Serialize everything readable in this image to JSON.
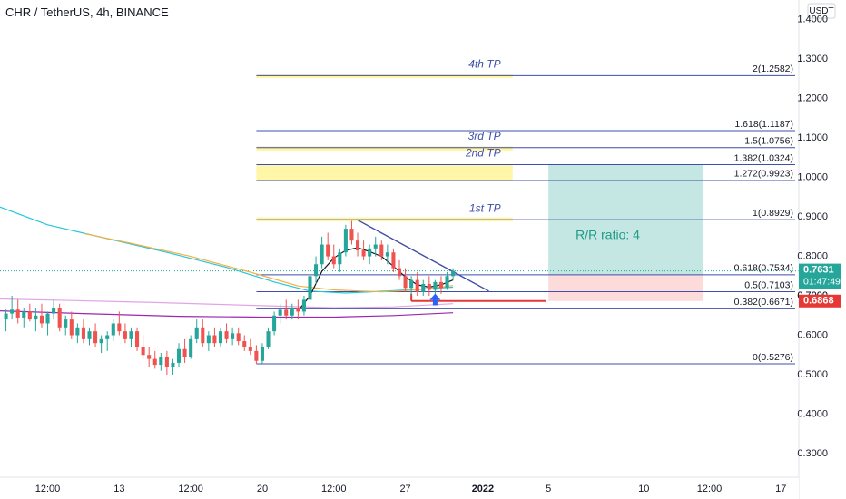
{
  "header": {
    "title": "CHR / TetherUS, 4h, BINANCE",
    "currency": "USDT"
  },
  "colors": {
    "up": "#26a69a",
    "down": "#ef5350",
    "fib": "#3f4fa8",
    "tp_zone": "#fff59d",
    "profit_zone": "#b2dfdb",
    "loss_zone": "#fdd5d5",
    "stop_line": "#e53935",
    "ma_cyan": "#26c6da",
    "ma_orange": "#f5b041",
    "ma_purple": "#9c27b0",
    "ma_pink": "#e1a5e6",
    "ma_black": "#131722",
    "trend": "#3f4fa8",
    "arrow": "#2962ff"
  },
  "chart_data": {
    "type": "candlestick",
    "symbol": "CHR / TetherUS, 4h, BINANCE",
    "currency": "USDT",
    "y_axis": {
      "range": [
        0.24,
        1.45
      ],
      "ticks": [
        0.3,
        0.4,
        0.5,
        0.6,
        0.7,
        0.8,
        0.9,
        1.0,
        1.1,
        1.2,
        1.3,
        1.4
      ],
      "tick_labels": [
        "0.3000",
        "0.4000",
        "0.5000",
        "0.6000",
        "0.7000",
        "0.8000",
        "0.9000",
        "1.0000",
        "1.1000",
        "1.2000",
        "1.3000",
        "1.4000"
      ]
    },
    "x_axis": {
      "tick_labels": [
        "12:00",
        "13",
        "12:00",
        "20",
        "12:00",
        "27",
        "2022",
        "5",
        "10",
        "12:00",
        "17"
      ],
      "tick_positions": [
        3,
        9,
        15,
        21,
        27,
        33,
        39.5,
        45,
        53,
        58.5,
        64.5
      ],
      "range": [
        -1,
        66
      ]
    },
    "candles": [
      {
        "t": -0.5,
        "o": 0.64,
        "h": 0.665,
        "l": 0.61,
        "c": 0.655
      },
      {
        "t": 0,
        "o": 0.655,
        "h": 0.7,
        "l": 0.64,
        "c": 0.665
      },
      {
        "t": 0.5,
        "o": 0.665,
        "h": 0.69,
        "l": 0.63,
        "c": 0.645
      },
      {
        "t": 1,
        "o": 0.645,
        "h": 0.67,
        "l": 0.62,
        "c": 0.66
      },
      {
        "t": 1.5,
        "o": 0.66,
        "h": 0.68,
        "l": 0.635,
        "c": 0.64
      },
      {
        "t": 2,
        "o": 0.64,
        "h": 0.67,
        "l": 0.61,
        "c": 0.65
      },
      {
        "t": 2.5,
        "o": 0.65,
        "h": 0.68,
        "l": 0.62,
        "c": 0.63
      },
      {
        "t": 3,
        "o": 0.63,
        "h": 0.66,
        "l": 0.6,
        "c": 0.655
      },
      {
        "t": 3.5,
        "o": 0.655,
        "h": 0.69,
        "l": 0.64,
        "c": 0.67
      },
      {
        "t": 4,
        "o": 0.67,
        "h": 0.68,
        "l": 0.61,
        "c": 0.62
      },
      {
        "t": 4.5,
        "o": 0.62,
        "h": 0.65,
        "l": 0.6,
        "c": 0.64
      },
      {
        "t": 5,
        "o": 0.64,
        "h": 0.66,
        "l": 0.59,
        "c": 0.6
      },
      {
        "t": 5.5,
        "o": 0.6,
        "h": 0.63,
        "l": 0.58,
        "c": 0.62
      },
      {
        "t": 6,
        "o": 0.62,
        "h": 0.64,
        "l": 0.58,
        "c": 0.59
      },
      {
        "t": 6.5,
        "o": 0.59,
        "h": 0.62,
        "l": 0.575,
        "c": 0.61
      },
      {
        "t": 7,
        "o": 0.61,
        "h": 0.63,
        "l": 0.57,
        "c": 0.58
      },
      {
        "t": 7.5,
        "o": 0.58,
        "h": 0.6,
        "l": 0.555,
        "c": 0.59
      },
      {
        "t": 8,
        "o": 0.59,
        "h": 0.61,
        "l": 0.56,
        "c": 0.6
      },
      {
        "t": 8.5,
        "o": 0.6,
        "h": 0.64,
        "l": 0.585,
        "c": 0.63
      },
      {
        "t": 9,
        "o": 0.63,
        "h": 0.66,
        "l": 0.6,
        "c": 0.61
      },
      {
        "t": 9.5,
        "o": 0.61,
        "h": 0.63,
        "l": 0.58,
        "c": 0.59
      },
      {
        "t": 10,
        "o": 0.59,
        "h": 0.62,
        "l": 0.57,
        "c": 0.61
      },
      {
        "t": 10.5,
        "o": 0.61,
        "h": 0.62,
        "l": 0.56,
        "c": 0.57
      },
      {
        "t": 11,
        "o": 0.57,
        "h": 0.6,
        "l": 0.54,
        "c": 0.55
      },
      {
        "t": 11.5,
        "o": 0.55,
        "h": 0.57,
        "l": 0.52,
        "c": 0.54
      },
      {
        "t": 12,
        "o": 0.54,
        "h": 0.56,
        "l": 0.515,
        "c": 0.525
      },
      {
        "t": 12.5,
        "o": 0.525,
        "h": 0.555,
        "l": 0.51,
        "c": 0.545
      },
      {
        "t": 13,
        "o": 0.545,
        "h": 0.56,
        "l": 0.5,
        "c": 0.52
      },
      {
        "t": 13.5,
        "o": 0.52,
        "h": 0.54,
        "l": 0.5,
        "c": 0.53
      },
      {
        "t": 14,
        "o": 0.53,
        "h": 0.58,
        "l": 0.52,
        "c": 0.565
      },
      {
        "t": 14.5,
        "o": 0.565,
        "h": 0.59,
        "l": 0.53,
        "c": 0.545
      },
      {
        "t": 15,
        "o": 0.545,
        "h": 0.6,
        "l": 0.54,
        "c": 0.59
      },
      {
        "t": 15.5,
        "o": 0.59,
        "h": 0.64,
        "l": 0.58,
        "c": 0.62
      },
      {
        "t": 16,
        "o": 0.62,
        "h": 0.64,
        "l": 0.57,
        "c": 0.58
      },
      {
        "t": 16.5,
        "o": 0.58,
        "h": 0.61,
        "l": 0.56,
        "c": 0.6
      },
      {
        "t": 17,
        "o": 0.6,
        "h": 0.62,
        "l": 0.57,
        "c": 0.58
      },
      {
        "t": 17.5,
        "o": 0.58,
        "h": 0.62,
        "l": 0.57,
        "c": 0.61
      },
      {
        "t": 18,
        "o": 0.61,
        "h": 0.63,
        "l": 0.58,
        "c": 0.59
      },
      {
        "t": 18.5,
        "o": 0.59,
        "h": 0.62,
        "l": 0.575,
        "c": 0.605
      },
      {
        "t": 19,
        "o": 0.605,
        "h": 0.62,
        "l": 0.575,
        "c": 0.585
      },
      {
        "t": 19.5,
        "o": 0.585,
        "h": 0.6,
        "l": 0.56,
        "c": 0.57
      },
      {
        "t": 20,
        "o": 0.57,
        "h": 0.59,
        "l": 0.55,
        "c": 0.56
      },
      {
        "t": 20.5,
        "o": 0.56,
        "h": 0.575,
        "l": 0.528,
        "c": 0.535
      },
      {
        "t": 21,
        "o": 0.535,
        "h": 0.58,
        "l": 0.528,
        "c": 0.57
      },
      {
        "t": 21.5,
        "o": 0.57,
        "h": 0.62,
        "l": 0.565,
        "c": 0.61
      },
      {
        "t": 22,
        "o": 0.61,
        "h": 0.66,
        "l": 0.6,
        "c": 0.65
      },
      {
        "t": 22.5,
        "o": 0.65,
        "h": 0.68,
        "l": 0.63,
        "c": 0.665
      },
      {
        "t": 23,
        "o": 0.665,
        "h": 0.69,
        "l": 0.64,
        "c": 0.65
      },
      {
        "t": 23.5,
        "o": 0.65,
        "h": 0.68,
        "l": 0.64,
        "c": 0.67
      },
      {
        "t": 24,
        "o": 0.67,
        "h": 0.69,
        "l": 0.64,
        "c": 0.66
      },
      {
        "t": 24.5,
        "o": 0.66,
        "h": 0.7,
        "l": 0.65,
        "c": 0.69
      },
      {
        "t": 25,
        "o": 0.69,
        "h": 0.76,
        "l": 0.68,
        "c": 0.75
      },
      {
        "t": 25.5,
        "o": 0.75,
        "h": 0.8,
        "l": 0.73,
        "c": 0.78
      },
      {
        "t": 26,
        "o": 0.78,
        "h": 0.85,
        "l": 0.77,
        "c": 0.83
      },
      {
        "t": 26.5,
        "o": 0.83,
        "h": 0.86,
        "l": 0.79,
        "c": 0.8
      },
      {
        "t": 27,
        "o": 0.8,
        "h": 0.83,
        "l": 0.77,
        "c": 0.78
      },
      {
        "t": 27.5,
        "o": 0.78,
        "h": 0.82,
        "l": 0.76,
        "c": 0.81
      },
      {
        "t": 28,
        "o": 0.81,
        "h": 0.88,
        "l": 0.8,
        "c": 0.87
      },
      {
        "t": 28.5,
        "o": 0.87,
        "h": 0.89,
        "l": 0.83,
        "c": 0.84
      },
      {
        "t": 29,
        "o": 0.84,
        "h": 0.86,
        "l": 0.8,
        "c": 0.815
      },
      {
        "t": 29.5,
        "o": 0.815,
        "h": 0.84,
        "l": 0.79,
        "c": 0.8
      },
      {
        "t": 30,
        "o": 0.8,
        "h": 0.83,
        "l": 0.78,
        "c": 0.82
      },
      {
        "t": 30.5,
        "o": 0.82,
        "h": 0.85,
        "l": 0.8,
        "c": 0.83
      },
      {
        "t": 31,
        "o": 0.83,
        "h": 0.84,
        "l": 0.79,
        "c": 0.8
      },
      {
        "t": 31.5,
        "o": 0.8,
        "h": 0.83,
        "l": 0.78,
        "c": 0.81
      },
      {
        "t": 32,
        "o": 0.81,
        "h": 0.82,
        "l": 0.76,
        "c": 0.77
      },
      {
        "t": 32.5,
        "o": 0.77,
        "h": 0.79,
        "l": 0.74,
        "c": 0.75
      },
      {
        "t": 33,
        "o": 0.75,
        "h": 0.77,
        "l": 0.71,
        "c": 0.72
      },
      {
        "t": 33.5,
        "o": 0.72,
        "h": 0.75,
        "l": 0.7,
        "c": 0.74
      },
      {
        "t": 34,
        "o": 0.74,
        "h": 0.76,
        "l": 0.7,
        "c": 0.71
      },
      {
        "t": 34.5,
        "o": 0.71,
        "h": 0.74,
        "l": 0.7,
        "c": 0.73
      },
      {
        "t": 35,
        "o": 0.73,
        "h": 0.75,
        "l": 0.7,
        "c": 0.715
      },
      {
        "t": 35.5,
        "o": 0.715,
        "h": 0.74,
        "l": 0.705,
        "c": 0.735
      },
      {
        "t": 36,
        "o": 0.735,
        "h": 0.75,
        "l": 0.705,
        "c": 0.72
      },
      {
        "t": 36.5,
        "o": 0.72,
        "h": 0.76,
        "l": 0.715,
        "c": 0.75
      },
      {
        "t": 37,
        "o": 0.75,
        "h": 0.77,
        "l": 0.74,
        "c": 0.763
      }
    ],
    "moving_averages": [
      {
        "color": "#26c6da",
        "points": [
          [
            -1,
            0.925
          ],
          [
            3,
            0.88
          ],
          [
            8,
            0.845
          ],
          [
            13,
            0.81
          ],
          [
            18,
            0.772
          ],
          [
            22,
            0.735
          ],
          [
            25,
            0.712
          ],
          [
            28,
            0.707
          ],
          [
            32,
            0.713
          ],
          [
            37,
            0.722
          ]
        ]
      },
      {
        "color": "#f5b041",
        "points": [
          [
            6,
            0.858
          ],
          [
            10,
            0.833
          ],
          [
            15,
            0.8
          ],
          [
            20,
            0.76
          ],
          [
            24,
            0.725
          ],
          [
            27,
            0.715
          ],
          [
            31,
            0.71
          ],
          [
            34,
            0.715
          ],
          [
            37,
            0.726
          ]
        ]
      },
      {
        "color": "#e1a5e6",
        "points": [
          [
            -1,
            0.692
          ],
          [
            5,
            0.688
          ],
          [
            12,
            0.683
          ],
          [
            20,
            0.676
          ],
          [
            27,
            0.67
          ],
          [
            32,
            0.672
          ],
          [
            37,
            0.68
          ]
        ]
      },
      {
        "color": "#9c27b0",
        "points": [
          [
            -1,
            0.662
          ],
          [
            6,
            0.655
          ],
          [
            14,
            0.648
          ],
          [
            21,
            0.646
          ],
          [
            27,
            0.646
          ],
          [
            32,
            0.65
          ],
          [
            37,
            0.657
          ]
        ]
      },
      {
        "color": "#131722",
        "points": [
          [
            24,
            0.662
          ],
          [
            25,
            0.7
          ],
          [
            26,
            0.762
          ],
          [
            27,
            0.796
          ],
          [
            28,
            0.815
          ],
          [
            29,
            0.822
          ],
          [
            30,
            0.812
          ],
          [
            31,
            0.8
          ],
          [
            32,
            0.775
          ],
          [
            33,
            0.748
          ],
          [
            34,
            0.728
          ],
          [
            35,
            0.722
          ],
          [
            36,
            0.728
          ],
          [
            37,
            0.74
          ]
        ]
      }
    ],
    "fib_levels": [
      {
        "label": "0(0.5276)",
        "price": 0.5276
      },
      {
        "label": "0.382(0.6671)",
        "price": 0.6671
      },
      {
        "label": "0.5(0.7103)",
        "price": 0.7103
      },
      {
        "label": "0.618(0.7534)",
        "price": 0.7534
      },
      {
        "label": "1(0.8929)",
        "price": 0.8929
      },
      {
        "label": "1.272(0.9923)",
        "price": 0.9923
      },
      {
        "label": "1.382(1.0324)",
        "price": 1.0324
      },
      {
        "label": "1.5(1.0756)",
        "price": 1.0756
      },
      {
        "label": "1.618(1.1187)",
        "price": 1.1187
      },
      {
        "label": "2(1.2582)",
        "price": 1.2582
      }
    ],
    "tp_labels": [
      {
        "label": "1st TP",
        "price": 0.8929
      },
      {
        "label": "2nd TP",
        "price": 1.0324
      },
      {
        "label": "3rd TP",
        "price": 1.0756
      },
      {
        "label": "4th TP",
        "price": 1.2582
      }
    ],
    "tp_zones": [
      {
        "x0": 20.5,
        "x1": 42,
        "y0": 0.8885,
        "y1": 0.899
      },
      {
        "x0": 20.5,
        "x1": 42,
        "y0": 0.9923,
        "y1": 1.0324
      },
      {
        "x0": 20.5,
        "x1": 42,
        "y0": 1.068,
        "y1": 1.079
      },
      {
        "x0": 20.5,
        "x1": 42,
        "y0": 1.252,
        "y1": 1.261
      }
    ],
    "trendline": {
      "from": [
        29,
        0.892
      ],
      "to": [
        40,
        0.712
      ]
    },
    "position": {
      "x0": 45,
      "x1": 58,
      "entry": 0.7534,
      "target": 1.0324,
      "stop": 0.6868,
      "label": "R/R ratio: 4"
    },
    "stop_marker": {
      "x0": 33.5,
      "x1": 44.8,
      "price": 0.6868
    },
    "entry_arrow": {
      "t": 35.5,
      "price": 0.715
    },
    "current_price": {
      "value": 0.7631,
      "label": "0.7631",
      "countdown": "01:47:49"
    },
    "stop_tag": {
      "label": "0.6868",
      "price": 0.6868
    },
    "hidden_tick": {
      "label": "0.7000",
      "price": 0.7
    }
  }
}
